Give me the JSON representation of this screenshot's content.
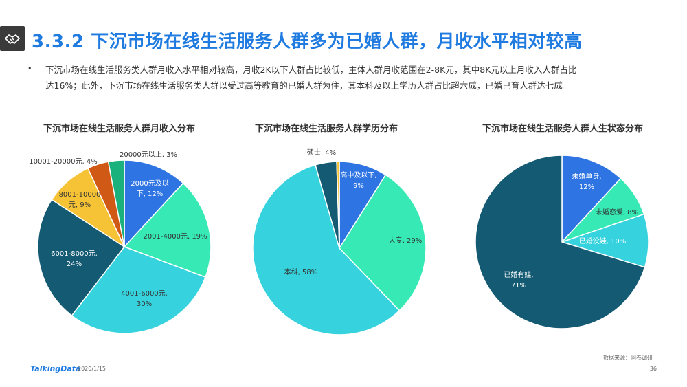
{
  "header": {
    "title": "3.3.2 下沉市场在线生活服务人群多为已婚人群，月收水平相对较高",
    "icon": "handshake-icon"
  },
  "description": {
    "bullet": "•",
    "line1": "下沉市场在线生活服务类人群月收入水平相对较高，月收2K以下人群占比较低，主体人群月收范围在2-8K元，其中8K元以上月收入人群占比",
    "line2": "达16%；此外，下沉市场在线生活服务类人群以受过高等教育的已婚人群为住，其本科及以上学历人群占比超六成，已婚已育人群达七成。"
  },
  "chart_data": [
    {
      "type": "pie",
      "title": "下沉市场在线生活服务人群月收入分布",
      "start_angle_deg": 0,
      "slices": [
        {
          "label": "2000元及以下, 12%",
          "value": 12,
          "color": "#2f74e3"
        },
        {
          "label": "2001-4000元, 19%",
          "value": 19,
          "color": "#36e9b5"
        },
        {
          "label": "4001-6000元, 30%",
          "value": 30,
          "color": "#36d2dd"
        },
        {
          "label": "6001-8000元, 24%",
          "value": 24,
          "color": "#135a72"
        },
        {
          "label": "8001-10000元, 9%",
          "value": 9,
          "color": "#f6c336"
        },
        {
          "label": "10001-20000元, 4%",
          "value": 4,
          "color": "#d05a15"
        },
        {
          "label": "20000元以上, 3%",
          "value": 3,
          "color": "#1ab17d"
        }
      ]
    },
    {
      "type": "pie",
      "title": "下沉市场在线生活服务人群学历分布",
      "start_angle_deg": 0,
      "slices": [
        {
          "label": "高中及以下, 9%",
          "value": 9,
          "color": "#2f74e3"
        },
        {
          "label": "大专, 29%",
          "value": 29,
          "color": "#36e9b5"
        },
        {
          "label": "本科, 58%",
          "value": 58,
          "color": "#36d2dd"
        },
        {
          "label": "硕士, 4%",
          "value": 4,
          "color": "#135a72"
        },
        {
          "label": "",
          "value": 0.5,
          "color": "#f6c336"
        }
      ]
    },
    {
      "type": "pie",
      "title": "下沉市场在线生活服务人群人生状态分布",
      "start_angle_deg": 0,
      "slices": [
        {
          "label": "未婚单身, 12%",
          "value": 12,
          "color": "#2f74e3"
        },
        {
          "label": "未婚恋爱, 8%",
          "value": 8,
          "color": "#36e9b5"
        },
        {
          "label": "已婚没娃, 10%",
          "value": 10,
          "color": "#36d2dd"
        },
        {
          "label": "已婚有娃, 71%",
          "value": 71,
          "color": "#135a72"
        }
      ]
    }
  ],
  "footer": {
    "logo": "TalkingData",
    "date": "2020/1/15",
    "source": "数据来源：问卷调研",
    "page": "36"
  }
}
